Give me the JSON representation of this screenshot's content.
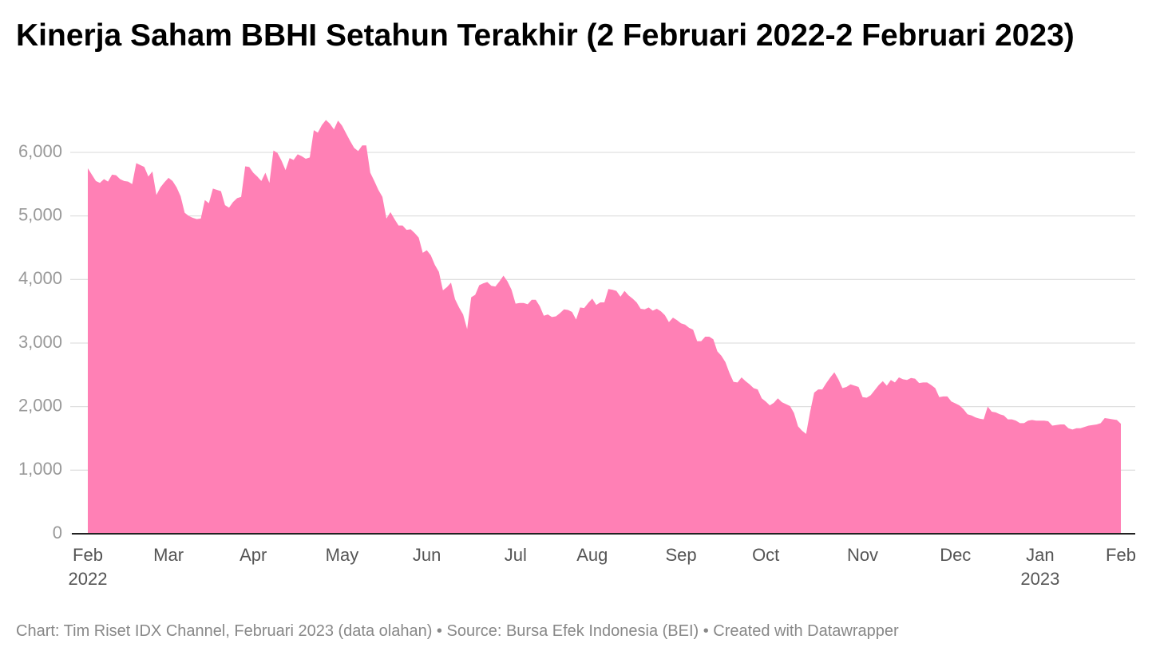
{
  "chart_data": {
    "type": "area",
    "title": "Kinerja Saham BBHI Setahun Terakhir (2 Februari 2022-2 Februari 2023)",
    "source": "Chart: Tim Riset IDX Channel, Februari 2023 (data olahan) • Source: Bursa Efek Indonesia (BEI) • Created with Datawrapper",
    "color": "#ff80b5",
    "grid": true,
    "ylim": [
      0,
      6500
    ],
    "yticks": [
      0,
      {
        "value": 1000,
        "label": "1,000"
      },
      {
        "value": 2000,
        "label": "2,000"
      },
      {
        "value": 3000,
        "label": "3,000"
      },
      {
        "value": 4000,
        "label": "4,000"
      },
      {
        "value": 5000,
        "label": "5,000"
      },
      {
        "value": 6000,
        "label": "6,000"
      }
    ],
    "categories": [
      [
        "Feb",
        "2022"
      ],
      null,
      null,
      null,
      null,
      null,
      null,
      null,
      null,
      null,
      null,
      null,
      null,
      null,
      null,
      null,
      null,
      null,
      null,
      null,
      "Mar",
      null,
      null,
      null,
      null,
      null,
      null,
      null,
      null,
      null,
      null,
      null,
      null,
      null,
      null,
      null,
      null,
      null,
      null,
      null,
      null,
      "Apr",
      null,
      null,
      null,
      null,
      null,
      null,
      null,
      null,
      null,
      null,
      null,
      null,
      null,
      null,
      null,
      null,
      null,
      null,
      null,
      null,
      null,
      "May",
      null,
      null,
      null,
      null,
      null,
      null,
      null,
      null,
      null,
      null,
      null,
      null,
      null,
      null,
      null,
      null,
      null,
      null,
      null,
      null,
      "Jun",
      null,
      null,
      null,
      null,
      null,
      null,
      null,
      null,
      null,
      null,
      null,
      null,
      null,
      null,
      null,
      null,
      null,
      null,
      null,
      null,
      null,
      "Jul",
      null,
      null,
      null,
      null,
      null,
      null,
      null,
      null,
      null,
      null,
      null,
      null,
      null,
      null,
      null,
      null,
      null,
      null,
      "Aug",
      null,
      null,
      null,
      null,
      null,
      null,
      null,
      null,
      null,
      null,
      null,
      null,
      null,
      null,
      null,
      null,
      null,
      null,
      null,
      null,
      null,
      "Sep",
      null,
      null,
      null,
      null,
      null,
      null,
      null,
      null,
      null,
      null,
      null,
      null,
      null,
      null,
      null,
      null,
      null,
      null,
      null,
      null,
      "Oct",
      null,
      null,
      null,
      null,
      null,
      null,
      null,
      null,
      null,
      null,
      null,
      null,
      null,
      null,
      null,
      null,
      null,
      null,
      null,
      null,
      null,
      null,
      null,
      "Nov",
      null,
      null,
      null,
      null,
      null,
      null,
      null,
      null,
      null,
      null,
      null,
      null,
      null,
      null,
      null,
      null,
      null,
      null,
      null,
      null,
      null,
      null,
      "Dec",
      null,
      null,
      null,
      null,
      null,
      null,
      null,
      null,
      null,
      null,
      null,
      null,
      null,
      null,
      null,
      null,
      null,
      null,
      null,
      null,
      [
        "Jan",
        "2023"
      ],
      null,
      null,
      null,
      null,
      null,
      null,
      null,
      null,
      null,
      null,
      null,
      null,
      null,
      null,
      null,
      null,
      null,
      null,
      null,
      "Feb"
    ],
    "values": [
      5750,
      5650,
      5550,
      5520,
      5580,
      5540,
      5650,
      5640,
      5580,
      5550,
      5540,
      5500,
      5830,
      5800,
      5770,
      5620,
      5700,
      5330,
      5450,
      5530,
      5600,
      5550,
      5450,
      5310,
      5050,
      5000,
      4970,
      4950,
      4960,
      5250,
      5200,
      5430,
      5410,
      5390,
      5170,
      5130,
      5220,
      5280,
      5300,
      5780,
      5770,
      5680,
      5620,
      5550,
      5680,
      5520,
      6030,
      5990,
      5870,
      5720,
      5910,
      5880,
      5970,
      5940,
      5900,
      5920,
      6350,
      6310,
      6430,
      6510,
      6450,
      6360,
      6500,
      6420,
      6300,
      6180,
      6070,
      6020,
      6110,
      6110,
      5680,
      5550,
      5410,
      5300,
      4960,
      5060,
      4950,
      4850,
      4850,
      4780,
      4790,
      4730,
      4660,
      4420,
      4460,
      4380,
      4230,
      4120,
      3830,
      3880,
      3950,
      3690,
      3560,
      3450,
      3220,
      3720,
      3760,
      3910,
      3940,
      3960,
      3900,
      3890,
      3970,
      4060,
      3970,
      3840,
      3620,
      3630,
      3630,
      3610,
      3680,
      3680,
      3580,
      3430,
      3450,
      3410,
      3420,
      3470,
      3530,
      3520,
      3490,
      3370,
      3560,
      3550,
      3630,
      3700,
      3600,
      3640,
      3640,
      3850,
      3840,
      3820,
      3730,
      3820,
      3750,
      3700,
      3640,
      3540,
      3530,
      3560,
      3510,
      3540,
      3500,
      3440,
      3330,
      3400,
      3360,
      3310,
      3290,
      3240,
      3210,
      3030,
      3030,
      3100,
      3100,
      3060,
      2870,
      2800,
      2700,
      2530,
      2390,
      2380,
      2460,
      2400,
      2350,
      2290,
      2270,
      2130,
      2080,
      2020,
      2060,
      2130,
      2070,
      2040,
      2010,
      1900,
      1690,
      1620,
      1570,
      1920,
      2220,
      2270,
      2270,
      2370,
      2460,
      2540,
      2430,
      2290,
      2310,
      2350,
      2330,
      2310,
      2150,
      2140,
      2180,
      2260,
      2340,
      2400,
      2330,
      2420,
      2380,
      2460,
      2430,
      2420,
      2450,
      2440,
      2370,
      2380,
      2380,
      2340,
      2290,
      2150,
      2160,
      2160,
      2080,
      2050,
      2020,
      1960,
      1880,
      1860,
      1830,
      1810,
      1800,
      2000,
      1920,
      1910,
      1880,
      1860,
      1800,
      1800,
      1780,
      1740,
      1740,
      1780,
      1790,
      1780,
      1780,
      1780,
      1770,
      1700,
      1710,
      1720,
      1720,
      1660,
      1640,
      1660,
      1660,
      1680,
      1700,
      1710,
      1720,
      1740,
      1820,
      1810,
      1800,
      1790,
      1730
    ]
  }
}
